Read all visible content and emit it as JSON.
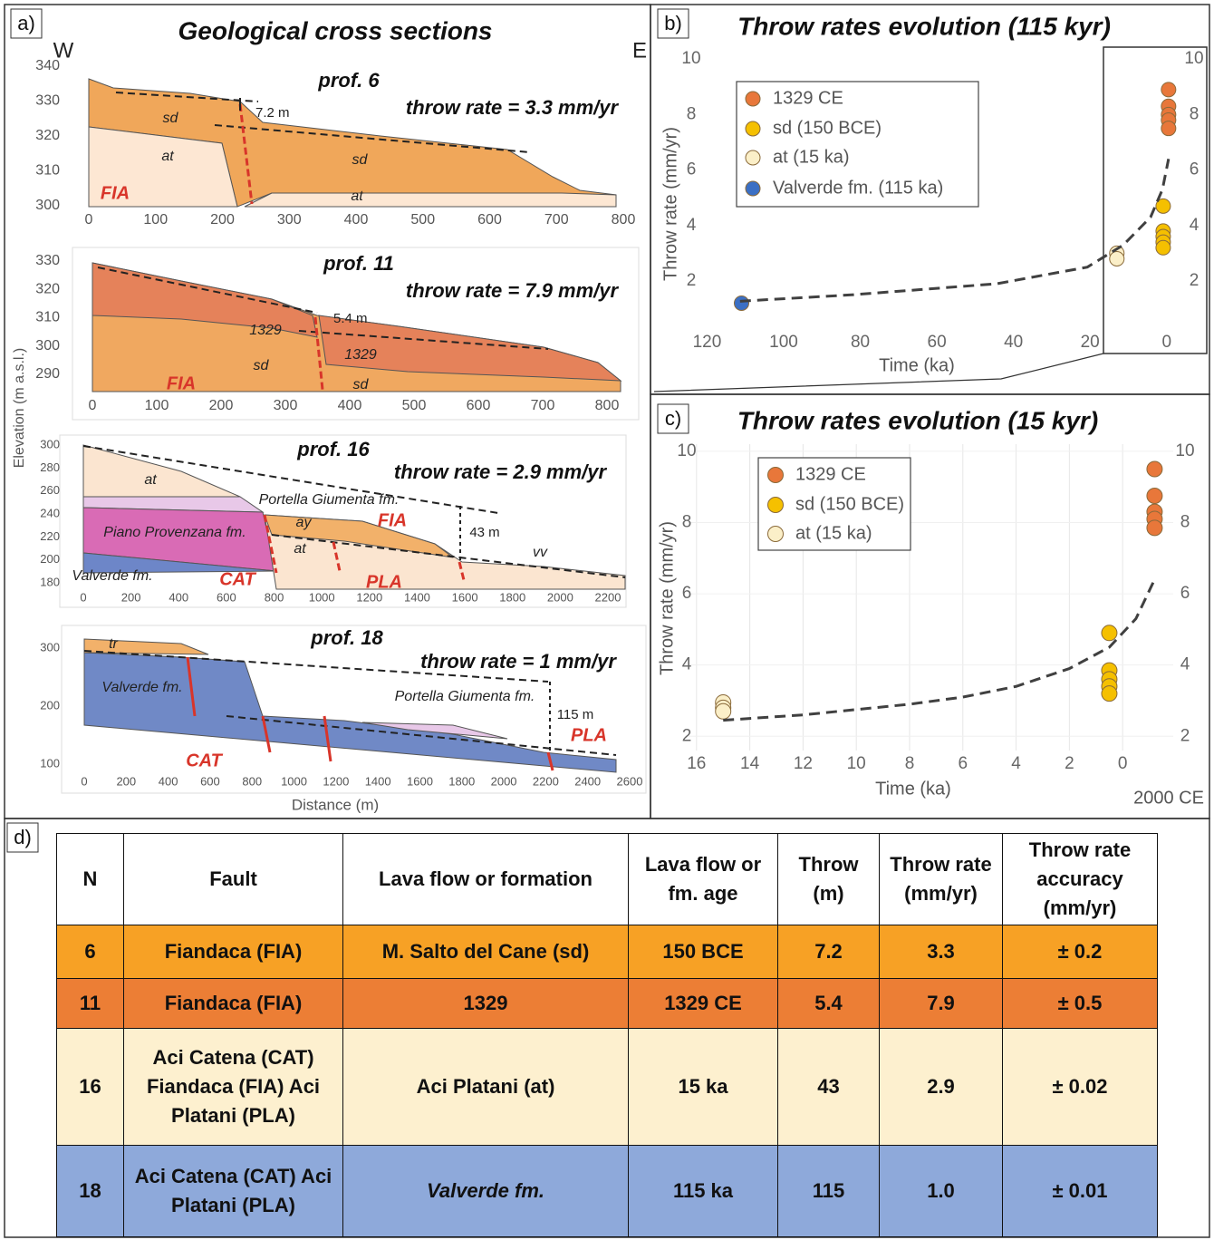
{
  "cross_sections": {
    "panel_label": "a)",
    "title": "Geological cross sections",
    "y_axis_label": "Elevation (m a.s.l.)",
    "x_axis_label": "Distance (m)",
    "profiles": [
      {
        "title": "prof. 6",
        "throw_rate": "throw rate = 3.3 mm/yr",
        "xlim": [
          0,
          800
        ],
        "xticks": [
          0,
          100,
          200,
          300,
          400,
          500,
          600,
          700,
          800
        ],
        "ylim": [
          300,
          340
        ],
        "yticks": [
          300,
          310,
          320,
          330,
          340
        ],
        "labels": [
          "W",
          "E",
          "7.2 m",
          "sd",
          "at",
          "sd",
          "at",
          "FIA"
        ]
      },
      {
        "title": "prof. 11",
        "throw_rate": "throw rate = 7.9 mm/yr",
        "xlim": [
          0,
          800
        ],
        "xticks": [
          0,
          100,
          200,
          300,
          400,
          500,
          600,
          700,
          800
        ],
        "ylim": [
          290,
          330
        ],
        "yticks": [
          290,
          300,
          310,
          320,
          330
        ],
        "labels": [
          "5.4 m",
          "1329",
          "1329",
          "sd",
          "sd",
          "FIA"
        ]
      },
      {
        "title": "prof. 16",
        "throw_rate": "throw rate = 2.9 mm/yr",
        "xlim": [
          0,
          2200
        ],
        "xticks": [
          0,
          200,
          400,
          600,
          800,
          1000,
          1200,
          1400,
          1600,
          1800,
          2000,
          2200
        ],
        "ylim": [
          180,
          300
        ],
        "yticks": [
          180,
          200,
          220,
          240,
          260,
          280,
          300
        ],
        "labels": [
          "at",
          "Portella Giumenta fm.",
          "ay",
          "FIA",
          "Piano Provenzana fm.",
          "at",
          "43 m",
          "vv",
          "Valverde fm.",
          "CAT",
          "PLA"
        ]
      },
      {
        "title": "prof. 18",
        "throw_rate": "throw rate = 1 mm/yr",
        "xlim": [
          0,
          2600
        ],
        "xticks": [
          0,
          200,
          400,
          600,
          800,
          1000,
          1200,
          1400,
          1600,
          1800,
          2000,
          2200,
          2400,
          2600
        ],
        "ylim": [
          100,
          300
        ],
        "yticks": [
          100,
          200,
          300
        ],
        "labels": [
          "tr",
          "Valverde fm.",
          "Portella Giumenta fm.",
          "115 m",
          "PLA",
          "CAT"
        ]
      }
    ]
  },
  "chart_data": [
    {
      "type": "scatter",
      "panel_label": "b)",
      "title": "Throw rates evolution (115 kyr)",
      "x_label": "Time (ka)",
      "y_label": "Throw rate (mm/yr)",
      "xlim": [
        122,
        -10
      ],
      "xticks": [
        120,
        100,
        80,
        60,
        40,
        20,
        0
      ],
      "ylim": [
        0.3,
        10.3
      ],
      "yticks": [
        2,
        4,
        6,
        8,
        10
      ],
      "y2lim": [
        0.3,
        10.3
      ],
      "y2ticks": [
        2,
        4,
        6,
        8,
        10
      ],
      "grid": false,
      "legend": "upper-left",
      "series": [
        {
          "name": "1329 CE",
          "color": "#e8773a",
          "x": [
            -0.5,
            -0.5,
            -0.5,
            -0.5,
            -0.5
          ],
          "values": [
            8.9,
            8.3,
            8.0,
            7.8,
            7.5
          ]
        },
        {
          "name": "sd (150 BCE)",
          "color": "#f5c000",
          "x": [
            0.9,
            0.9,
            0.9,
            0.9,
            0.9
          ],
          "values": [
            4.7,
            3.8,
            3.6,
            3.4,
            3.2
          ]
        },
        {
          "name": "at (15 ka)",
          "color": "#fbefc8",
          "x": [
            13,
            13
          ],
          "values": [
            3.0,
            2.8
          ]
        },
        {
          "name": "Valverde fm. (115 ka)",
          "color": "#3b6fc4",
          "x": [
            111
          ],
          "values": [
            1.2
          ]
        },
        {
          "type": "line",
          "color": "#404040",
          "x": [
            111.4,
            82.3,
            44.4,
            20.7,
            11.3,
            4.2,
            1.1,
            -0.5
          ],
          "values": [
            1.27,
            1.5,
            1.9,
            2.5,
            3.3,
            4.3,
            5.3,
            6.4
          ]
        }
      ]
    },
    {
      "type": "scatter",
      "panel_label": "c)",
      "title": "Throw rates evolution (15 kyr)",
      "x_label": "Time (ka)",
      "y_label": "Throw rate (mm/yr)",
      "x_end_label": "2000 CE",
      "xlim": [
        16.3,
        -1.9
      ],
      "xticks": [
        16,
        14,
        12,
        10,
        8,
        6,
        4,
        2,
        0
      ],
      "ylim": [
        1.6,
        10.2
      ],
      "yticks": [
        2,
        4,
        6,
        8,
        10
      ],
      "y2lim": [
        1.6,
        10.2
      ],
      "y2ticks": [
        2,
        4,
        6,
        8,
        10
      ],
      "grid": true,
      "legend": "upper-left",
      "series": [
        {
          "name": "1329 CE",
          "color": "#e8773a",
          "x": [
            -1.2,
            -1.2,
            -1.2,
            -1.2,
            -1.2
          ],
          "values": [
            9.5,
            8.75,
            8.3,
            8.1,
            7.85
          ]
        },
        {
          "name": "sd (150 BCE)",
          "color": "#f5c000",
          "x": [
            0.5,
            0.5,
            0.5,
            0.5,
            0.5
          ],
          "values": [
            4.9,
            3.85,
            3.6,
            3.4,
            3.2
          ]
        },
        {
          "name": "at (15 ka)",
          "color": "#fbefc8",
          "x": [
            15,
            15,
            15
          ],
          "values": [
            2.95,
            2.8,
            2.7
          ]
        },
        {
          "type": "line",
          "color": "#404040",
          "x": [
            15,
            12,
            10,
            8,
            6,
            4,
            2,
            0.5,
            -0.5,
            -1.2
          ],
          "values": [
            2.45,
            2.6,
            2.75,
            2.9,
            3.1,
            3.4,
            3.9,
            4.5,
            5.3,
            6.4
          ]
        }
      ]
    }
  ],
  "table": {
    "panel_label": "d)",
    "header": [
      "N",
      "Fault",
      "Lava flow or formation",
      "Lava flow or fm. age",
      "Throw (m)",
      "Throw rate (mm/yr)",
      "Throw rate accuracy (mm/yr)"
    ],
    "rows": [
      [
        "6",
        "Fiandaca (FIA)",
        "M. Salto del Cane (sd)",
        "150 BCE",
        "7.2",
        "3.3",
        "± 0.2"
      ],
      [
        "11",
        "Fiandaca (FIA)",
        "1329",
        "1329 CE",
        "5.4",
        "7.9",
        "± 0.5"
      ],
      [
        "16",
        "Aci Catena (CAT) Fiandaca (FIA) Aci Platani (PLA)",
        "Aci Platani (at)",
        "15 ka",
        "43",
        "2.9",
        "± 0.02"
      ],
      [
        "18",
        "Aci Catena (CAT) Aci Platani (PLA)",
        "Valverde fm.",
        "115 ka",
        "115",
        "1.0",
        "± 0.01"
      ]
    ]
  }
}
